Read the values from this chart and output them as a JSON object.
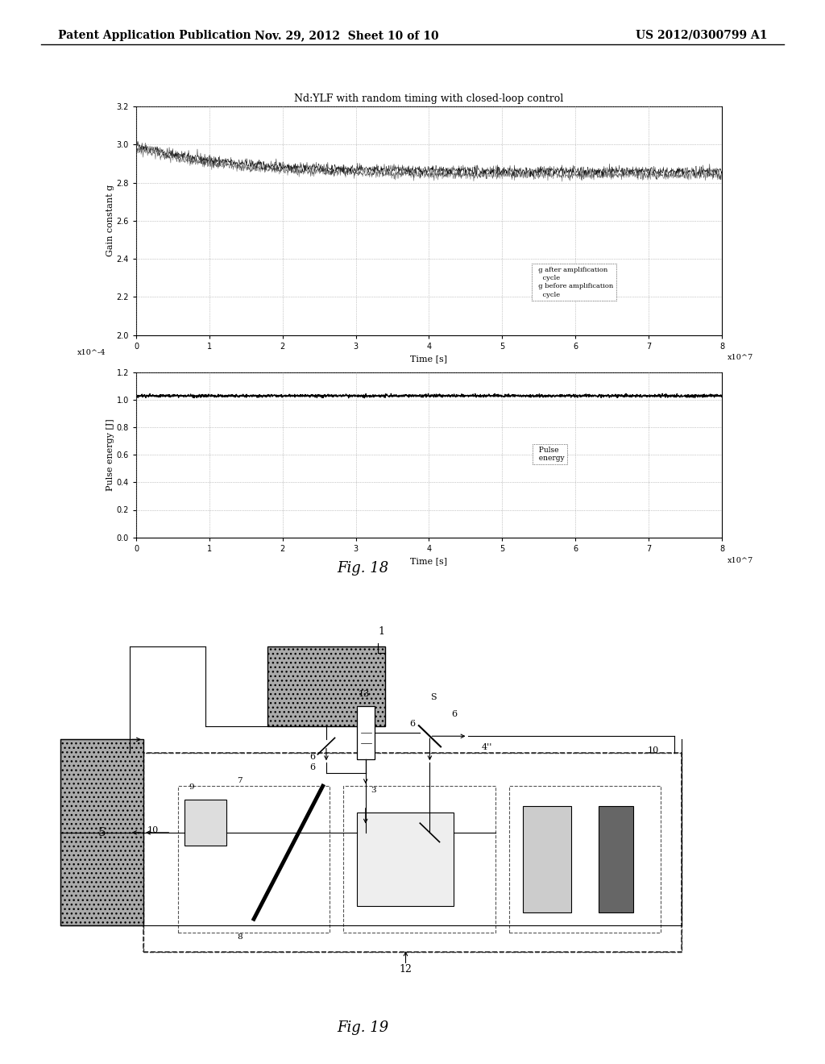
{
  "header_left": "Patent Application Publication",
  "header_mid": "Nov. 29, 2012  Sheet 10 of 10",
  "header_right": "US 2012/0300799 A1",
  "plot1_title": "Nd:YLF with random timing with closed-loop control",
  "plot1_xlabel": "Time [s]",
  "plot1_ylabel": "Gain constant g",
  "plot1_xscale_label": "x10^7",
  "plot1_xlim": [
    0,
    8
  ],
  "plot1_ylim": [
    2.0,
    3.2
  ],
  "plot1_yticks": [
    2.0,
    2.2,
    2.4,
    2.6,
    2.8,
    3.0,
    3.2
  ],
  "plot1_xticks": [
    0,
    1,
    2,
    3,
    4,
    5,
    6,
    7,
    8
  ],
  "plot2_xlabel": "Time [s]",
  "plot2_ylabel": "Pulse energy [J]",
  "plot2_xscale_label": "x10^7",
  "plot2_yscale_label": "x10^-4",
  "plot2_xlim": [
    0,
    8
  ],
  "plot2_ylim": [
    0,
    1.2
  ],
  "plot2_yticks": [
    0,
    0.2,
    0.4,
    0.6,
    0.8,
    1.0,
    1.2
  ],
  "plot2_xticks": [
    0,
    1,
    2,
    3,
    4,
    5,
    6,
    7,
    8
  ],
  "fig18_label": "Fig. 18",
  "fig19_label": "Fig. 19",
  "bg_color": "#ffffff",
  "grid_color": "#999999"
}
